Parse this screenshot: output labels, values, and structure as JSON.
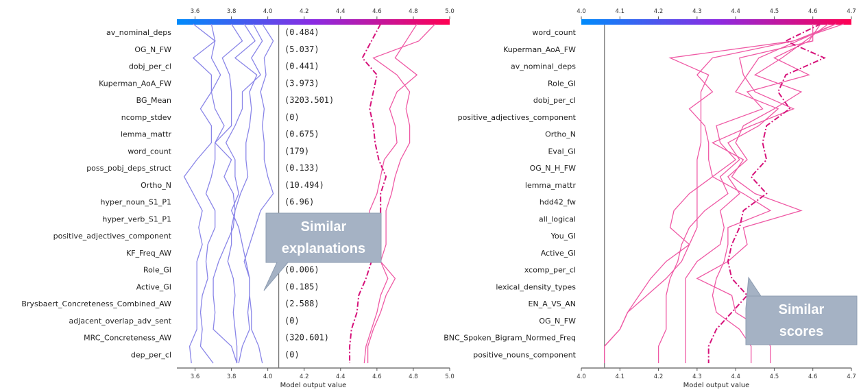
{
  "chart_data": [
    {
      "type": "line",
      "panel": "left",
      "xlabel": "Model output value",
      "xlim": [
        3.5,
        5.0
      ],
      "xticks": [
        "3.6",
        "3.8",
        "4.0",
        "4.2",
        "4.4",
        "4.6",
        "4.8",
        "5.0"
      ],
      "base_value": 4.06,
      "features": [
        "av_nominal_deps",
        "OG_N_FW",
        "dobj_per_cl",
        "Kuperman_AoA_FW",
        "BG_Mean",
        "ncomp_stdev",
        "lemma_mattr",
        "word_count",
        "poss_pobj_deps_struct",
        "Ortho_N",
        "hyper_noun_S1_P1",
        "hyper_verb_S1_P1",
        "positive_adjectives_component",
        "KF_Freq_AW",
        "Role_GI",
        "Active_GI",
        "Brysbaert_Concreteness_Combined_AW",
        "adjacent_overlap_adv_sent",
        "MRC_Concreteness_AW",
        "dep_per_cl"
      ],
      "feature_values": [
        "(0.484)",
        "(5.037)",
        "(0.441)",
        "(3.973)",
        "(3203.501)",
        "(0)",
        "(0.675)",
        "(179)",
        "(0.133)",
        "(10.494)",
        "(6.96)",
        "",
        "",
        "",
        "(0.006)",
        "(0.185)",
        "(2.588)",
        "(0)",
        "(320.601)",
        "(0)"
      ],
      "series": [
        {
          "color": "#8a86e8",
          "style": "solid",
          "x": [
            3.59,
            3.71,
            3.59,
            3.69,
            3.69,
            3.63,
            3.69,
            3.69,
            3.61,
            3.54,
            3.59,
            3.64,
            3.62,
            3.64,
            3.61,
            3.61,
            3.61,
            3.61,
            3.61,
            3.57,
            3.58
          ]
        },
        {
          "color": "#8a86e8",
          "style": "solid",
          "x": [
            3.69,
            3.71,
            3.69,
            3.74,
            3.69,
            3.71,
            3.76,
            3.71,
            3.71,
            3.69,
            3.66,
            3.71,
            3.71,
            3.67,
            3.66,
            3.67,
            3.64,
            3.63,
            3.64,
            3.63,
            3.7
          ]
        },
        {
          "color": "#8a86e8",
          "style": "solid",
          "x": [
            3.8,
            3.86,
            3.75,
            3.79,
            3.8,
            3.8,
            3.8,
            3.71,
            3.8,
            3.76,
            3.81,
            3.82,
            3.81,
            3.77,
            3.73,
            3.7,
            3.7,
            3.71,
            3.7,
            3.8,
            3.83
          ]
        },
        {
          "color": "#8a86e8",
          "style": "solid",
          "x": [
            3.87,
            3.93,
            3.82,
            3.94,
            3.9,
            3.91,
            3.9,
            3.88,
            3.88,
            3.89,
            3.85,
            3.82,
            3.8,
            3.8,
            3.78,
            3.81,
            3.82,
            3.81,
            3.82,
            3.83,
            3.83
          ]
        },
        {
          "color": "#8a86e8",
          "style": "solid",
          "x": [
            3.92,
            3.97,
            3.91,
            3.96,
            3.86,
            3.86,
            3.82,
            3.77,
            3.82,
            3.82,
            3.84,
            3.8,
            3.84,
            3.86,
            3.88,
            3.9,
            3.9,
            3.89,
            3.9,
            3.86,
            3.84
          ]
        },
        {
          "color": "#8a86e8",
          "style": "solid",
          "x": [
            3.97,
            4.03,
            3.98,
            3.99,
            3.96,
            3.98,
            3.97,
            3.98,
            3.98,
            4.0,
            4.03,
            3.96,
            3.93,
            3.9,
            3.87,
            3.9,
            3.9,
            3.91,
            3.91,
            3.95,
            3.97
          ]
        },
        {
          "color": "#d6127a",
          "style": "dashdot",
          "x": [
            4.62,
            4.57,
            4.52,
            4.6,
            4.58,
            4.56,
            4.58,
            4.59,
            4.61,
            4.65,
            4.62,
            4.62,
            4.62,
            4.57,
            4.57,
            4.54,
            4.5,
            4.49,
            4.46,
            4.45,
            4.45
          ]
        },
        {
          "color": "#ef5aa5",
          "style": "solid",
          "x": [
            4.82,
            4.76,
            4.7,
            4.82,
            4.71,
            4.67,
            4.7,
            4.71,
            4.64,
            4.62,
            4.6,
            4.56,
            4.56,
            4.56,
            4.62,
            4.66,
            4.62,
            4.6,
            4.57,
            4.54,
            4.53
          ]
        },
        {
          "color": "#ef5aa5",
          "style": "solid",
          "x": [
            4.92,
            4.83,
            4.58,
            4.71,
            4.78,
            4.76,
            4.78,
            4.78,
            4.73,
            4.7,
            4.68,
            4.65,
            4.65,
            4.65,
            4.62,
            4.7,
            4.65,
            4.62,
            4.58,
            4.55,
            4.55
          ]
        }
      ],
      "annotation": "Similar explanations"
    },
    {
      "type": "line",
      "panel": "right",
      "xlabel": "Model output value",
      "xlim": [
        4.0,
        4.7
      ],
      "xticks": [
        "4.0",
        "4.1",
        "4.2",
        "4.3",
        "4.4",
        "4.5",
        "4.6",
        "4.7"
      ],
      "base_value": 4.06,
      "features": [
        "word_count",
        "Kuperman_AoA_FW",
        "av_nominal_deps",
        "Role_GI",
        "dobj_per_cl",
        "positive_adjectives_component",
        "Ortho_N",
        "Eval_GI",
        "OG_N_H_FW",
        "lemma_mattr",
        "hdd42_fw",
        "all_logical",
        "You_GI",
        "Active_GI",
        "xcomp_per_cl",
        "lexical_density_types",
        "EN_A_VS_AN",
        "OG_N_FW",
        "BNC_Spoken_Bigram_Normed_Freq",
        "positive_nouns_component"
      ],
      "series": [
        {
          "color": "#ef5aa5",
          "style": "solid",
          "x": [
            4.68,
            4.55,
            4.23,
            4.33,
            4.31,
            4.31,
            4.31,
            4.31,
            4.3,
            4.3,
            4.3,
            4.3,
            4.3,
            4.28,
            4.26,
            4.22,
            4.17,
            4.12,
            4.1,
            4.06,
            4.06
          ]
        },
        {
          "color": "#ef5aa5",
          "style": "solid",
          "x": [
            4.66,
            4.55,
            4.34,
            4.3,
            4.34,
            4.28,
            4.32,
            4.33,
            4.33,
            4.34,
            4.28,
            4.24,
            4.23,
            4.28,
            4.22,
            4.18,
            4.15,
            4.12,
            4.1,
            4.06,
            4.06
          ]
        },
        {
          "color": "#ef5aa5",
          "style": "solid",
          "x": [
            4.66,
            4.56,
            4.46,
            4.43,
            4.4,
            4.51,
            4.46,
            4.38,
            4.41,
            4.36,
            4.38,
            4.32,
            4.28,
            4.26,
            4.25,
            4.23,
            4.22,
            4.22,
            4.22,
            4.2,
            4.2
          ]
        },
        {
          "color": "#ef5aa5",
          "style": "solid",
          "x": [
            4.64,
            4.58,
            4.52,
            4.45,
            4.57,
            4.5,
            4.42,
            4.4,
            4.43,
            4.38,
            4.41,
            4.36,
            4.37,
            4.36,
            4.3,
            4.27,
            4.27,
            4.27,
            4.27,
            4.27,
            4.27
          ]
        },
        {
          "color": "#ef5aa5",
          "style": "solid",
          "x": [
            4.62,
            4.59,
            4.5,
            4.59,
            4.43,
            4.47,
            4.35,
            4.36,
            4.4,
            4.34,
            4.42,
            4.49,
            4.38,
            4.38,
            4.37,
            4.35,
            4.34,
            4.35,
            4.41,
            4.44,
            4.44
          ]
        },
        {
          "color": "#ef5aa5",
          "style": "solid",
          "x": [
            4.6,
            4.6,
            4.41,
            4.42,
            4.45,
            4.55,
            4.44,
            4.34,
            4.42,
            4.39,
            4.45,
            4.57,
            4.42,
            4.43,
            4.38,
            4.3,
            4.39,
            4.4,
            4.47,
            4.49,
            4.49
          ]
        },
        {
          "color": "#d6127a",
          "style": "dashdot",
          "x": [
            4.62,
            4.53,
            4.63,
            4.53,
            4.51,
            4.54,
            4.48,
            4.47,
            4.48,
            4.44,
            4.48,
            4.42,
            4.41,
            4.39,
            4.38,
            4.39,
            4.43,
            4.39,
            4.35,
            4.33,
            4.33
          ]
        }
      ],
      "annotation": "Similar scores"
    }
  ]
}
